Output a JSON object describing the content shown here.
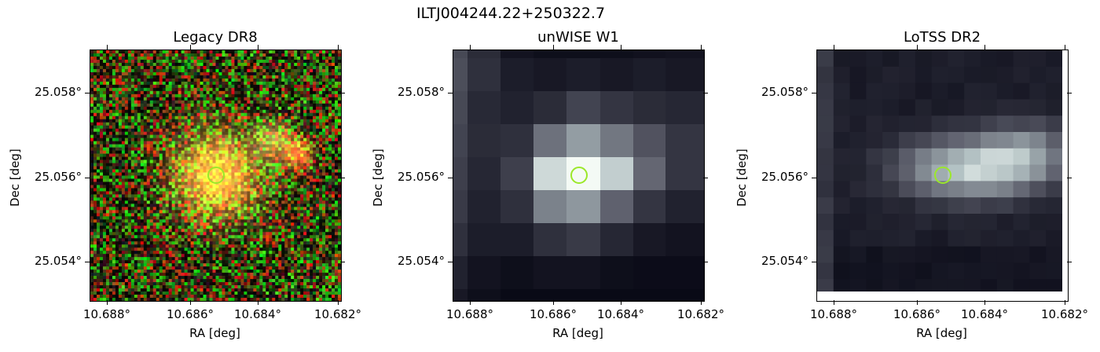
{
  "figure_title": "ILTJ004244.22+250322.7",
  "panels": [
    {
      "title": "Legacy DR8",
      "xlabel": "RA [deg]",
      "ylabel": "Dec [deg]",
      "xticks": [
        "10.688°",
        "10.686°",
        "10.684°",
        "10.682°"
      ],
      "yticks": [
        "25.058°",
        "25.056°",
        "25.054°"
      ],
      "colormap": "rgb-composite"
    },
    {
      "title": "unWISE W1",
      "xlabel": "RA [deg]",
      "ylabel": "Dec [deg]",
      "xticks": [
        "10.688°",
        "10.686°",
        "10.684°",
        "10.682°"
      ],
      "yticks": [
        "25.058°",
        "25.056°",
        "25.054°"
      ],
      "colormap": "bone"
    },
    {
      "title": "LoTSS DR2",
      "xlabel": "RA [deg]",
      "ylabel": "Dec [deg]",
      "xticks": [
        "10.688°",
        "10.686°",
        "10.684°",
        "10.682°"
      ],
      "yticks": [
        "25.058°",
        "25.056°",
        "25.054°"
      ],
      "colormap": "bone"
    }
  ],
  "marker": {
    "type": "circle",
    "color": "#9be82a"
  }
}
